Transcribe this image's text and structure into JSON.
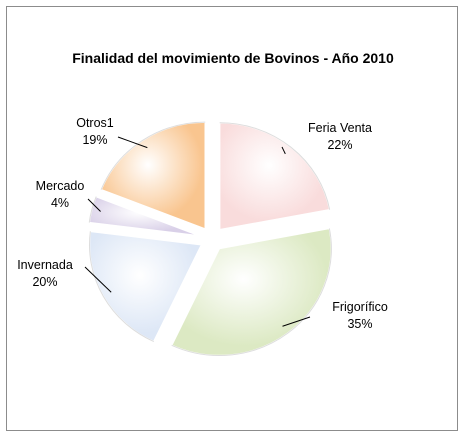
{
  "chart_data": {
    "type": "pie",
    "title": "Finalidad del movimiento de Bovinos - Año 2010",
    "slices": [
      {
        "label": "Feria Venta",
        "value_label": "22%",
        "value": 22,
        "color": "#f9dcdc"
      },
      {
        "label": "Frigorífico",
        "value_label": "35%",
        "value": 35,
        "color": "#dce9c3"
      },
      {
        "label": "Invernada",
        "value_label": "20%",
        "value": 20,
        "color": "#dde7f6"
      },
      {
        "label": "Mercado",
        "value_label": "4%",
        "value": 4,
        "color": "#d9d0e8"
      },
      {
        "label": "Otros1",
        "value_label": "19%",
        "value": 19,
        "color": "#f9c58f"
      }
    ],
    "legend": "none",
    "exploded": true
  }
}
